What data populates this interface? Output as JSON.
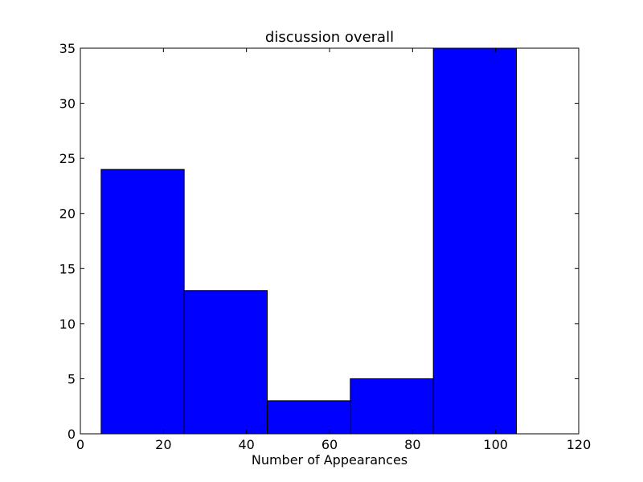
{
  "chart_data": {
    "type": "bar",
    "title": "discussion overall",
    "xlabel": "Number of Appearances",
    "ylabel": "",
    "bins": [
      {
        "x0": 5,
        "x1": 25,
        "value": 24
      },
      {
        "x0": 25,
        "x1": 45,
        "value": 13
      },
      {
        "x0": 45,
        "x1": 65,
        "value": 3
      },
      {
        "x0": 65,
        "x1": 85,
        "value": 5
      },
      {
        "x0": 85,
        "x1": 105,
        "value": 35
      }
    ],
    "xlim": [
      0,
      120
    ],
    "ylim": [
      0,
      35
    ],
    "xticks": [
      0,
      20,
      40,
      60,
      80,
      100,
      120
    ],
    "yticks": [
      0,
      5,
      10,
      15,
      20,
      25,
      30,
      35
    ],
    "grid": false,
    "bar_color": "#0000ff",
    "edge_color": "#000000"
  }
}
